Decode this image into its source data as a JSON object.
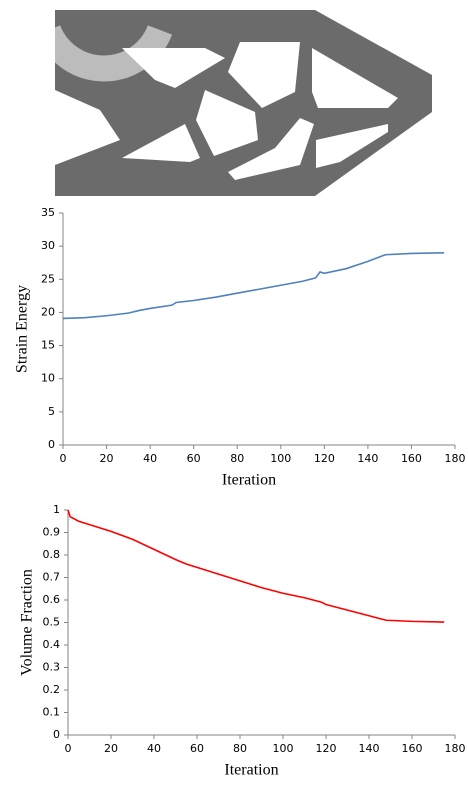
{
  "chart_data": [
    {
      "type": "line",
      "y_label": "Strain Energy",
      "x_label": "Iteration",
      "x": [
        0,
        10,
        20,
        30,
        35,
        40,
        50,
        52,
        60,
        70,
        80,
        90,
        100,
        110,
        116,
        118,
        120,
        130,
        140,
        148,
        160,
        175
      ],
      "values": [
        19.1,
        19.2,
        19.5,
        19.9,
        20.3,
        20.6,
        21.1,
        21.5,
        21.8,
        22.3,
        22.9,
        23.5,
        24.1,
        24.7,
        25.2,
        26.1,
        25.9,
        26.6,
        27.7,
        28.7,
        28.9,
        29.0
      ],
      "color": "#4f81bd",
      "xlim": [
        0,
        180
      ],
      "xticks": [
        0,
        20,
        40,
        60,
        80,
        100,
        120,
        140,
        160,
        180
      ],
      "ylim": [
        0,
        35
      ],
      "yticks": [
        0,
        5,
        10,
        15,
        20,
        25,
        30,
        35
      ]
    },
    {
      "type": "line",
      "y_label": "Volume Fraction",
      "x_label": "Iteration",
      "x": [
        0,
        1,
        5,
        10,
        20,
        30,
        40,
        50,
        55,
        60,
        70,
        80,
        90,
        100,
        110,
        118,
        120,
        130,
        140,
        148,
        160,
        175
      ],
      "values": [
        1.0,
        0.97,
        0.95,
        0.935,
        0.905,
        0.87,
        0.825,
        0.78,
        0.76,
        0.745,
        0.715,
        0.685,
        0.655,
        0.63,
        0.61,
        0.59,
        0.58,
        0.555,
        0.53,
        0.51,
        0.505,
        0.502
      ],
      "color": "#ff0000",
      "xlim": [
        0,
        180
      ],
      "xticks": [
        0,
        20,
        40,
        60,
        80,
        100,
        120,
        140,
        160,
        180
      ],
      "ylim": [
        0,
        1
      ],
      "yticks": [
        0,
        0.1,
        0.2,
        0.3,
        0.4,
        0.5,
        0.6,
        0.7,
        0.8,
        0.9,
        1
      ]
    }
  ]
}
